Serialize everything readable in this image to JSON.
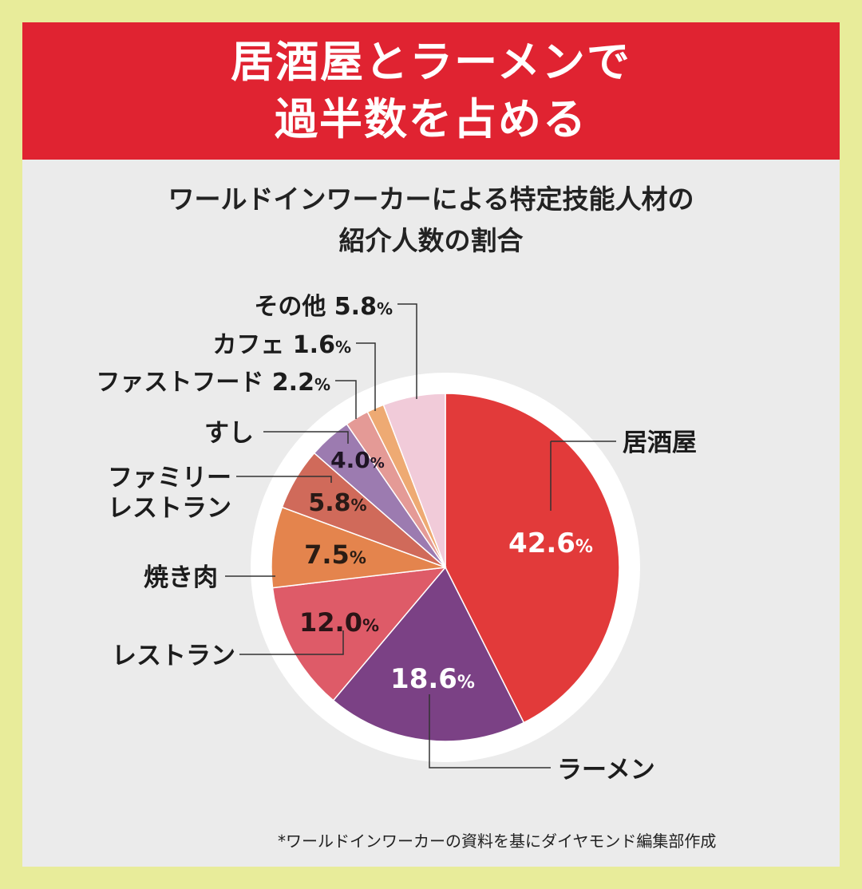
{
  "banner": {
    "line1": "居酒屋とラーメンで",
    "line2": "過半数を占める"
  },
  "chart_data": {
    "type": "pie",
    "title_line1": "ワールドインワーカーによる特定技能人材の",
    "title_line2": "紹介人数の割合",
    "slices": [
      {
        "label": "居酒屋",
        "value": 42.6,
        "display": "42.6%",
        "color": "#e23a3a"
      },
      {
        "label": "ラーメン",
        "value": 18.6,
        "display": "18.6%",
        "color": "#7b4185"
      },
      {
        "label": "レストラン",
        "value": 12.0,
        "display": "12.0%",
        "color": "#de5b68"
      },
      {
        "label": "焼き肉",
        "value": 7.5,
        "display": "7.5%",
        "color": "#e4844d"
      },
      {
        "label": "ファミリーレストラン",
        "label_line1": "ファミリー",
        "label_line2": "レストラン",
        "value": 5.8,
        "display": "5.8%",
        "color": "#d06a5a"
      },
      {
        "label": "すし",
        "value": 4.0,
        "display": "4.0%",
        "color": "#9c7bb0"
      },
      {
        "label": "ファストフード",
        "value": 2.2,
        "display": "2.2%",
        "color": "#e49a96"
      },
      {
        "label": "カフェ",
        "value": 1.6,
        "display": "1.6%",
        "color": "#eeaa73"
      },
      {
        "label": "その他",
        "value": 5.8,
        "display": "5.8%",
        "color": "#f1cbd9"
      }
    ]
  },
  "footnote": "*ワールドインワーカーの資料を基にダイヤモンド編集部作成"
}
